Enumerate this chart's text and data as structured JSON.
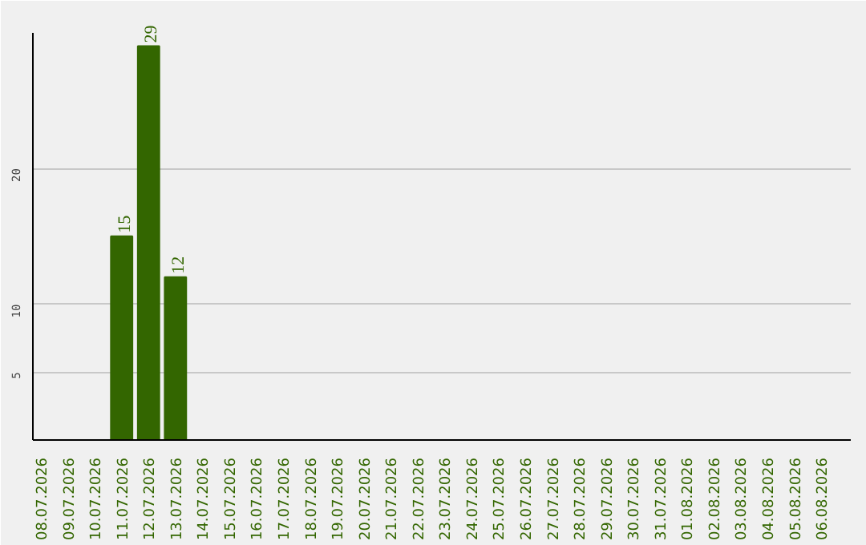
{
  "chart_data": {
    "type": "bar",
    "categories": [
      "08.07.2026",
      "09.07.2026",
      "10.07.2026",
      "11.07.2026",
      "12.07.2026",
      "13.07.2026",
      "14.07.2026",
      "15.07.2026",
      "16.07.2026",
      "17.07.2026",
      "18.07.2026",
      "19.07.2026",
      "20.07.2026",
      "21.07.2026",
      "22.07.2026",
      "23.07.2026",
      "24.07.2026",
      "25.07.2026",
      "26.07.2026",
      "27.07.2026",
      "28.07.2026",
      "29.07.2026",
      "30.07.2026",
      "31.07.2026",
      "01.08.2026",
      "02.08.2026",
      "03.08.2026",
      "04.08.2026",
      "05.08.2026",
      "06.08.2026"
    ],
    "series": [
      {
        "color": "#336600",
        "values": [
          0,
          0,
          0,
          15,
          29,
          12,
          0,
          0,
          0,
          0,
          0,
          0,
          0,
          0,
          0,
          0,
          0,
          0,
          0,
          0,
          0,
          0,
          0,
          0,
          0,
          0,
          0,
          0,
          0,
          0
        ],
        "value_labels": [
          null,
          null,
          null,
          "15",
          "29",
          "12",
          null,
          null,
          null,
          null,
          null,
          null,
          null,
          null,
          null,
          null,
          null,
          null,
          null,
          null,
          null,
          null,
          null,
          null,
          null,
          null,
          null,
          null,
          null,
          null
        ]
      }
    ],
    "ylim": [
      0,
      30
    ],
    "yticks": [
      5,
      10,
      20
    ],
    "grid": "y"
  }
}
